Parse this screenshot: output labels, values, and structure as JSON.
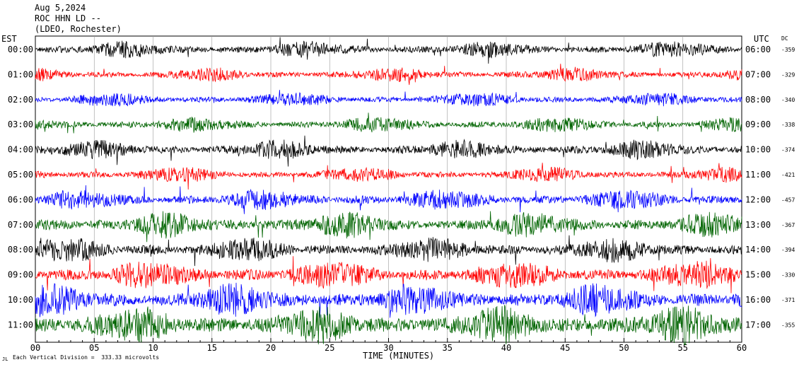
{
  "header": {
    "date": "Aug 5,2024",
    "station": "ROC HHN LD --",
    "network": "(LDEO, Rochester)"
  },
  "left_axis_title": "EST",
  "right_axis_title": "UTC",
  "dc_title": "DC",
  "footer": {
    "scale_text": "Each Vertical Division =  333.33 microvolts",
    "corner_mark": "JL"
  },
  "colors": {
    "black": "#000000",
    "red": "#ff0000",
    "blue": "#0000ff",
    "green": "#006400"
  },
  "chart_data": {
    "type": "line",
    "title": "ROC HHN LD --",
    "xlabel": "TIME (MINUTES)",
    "xlim": [
      0,
      60
    ],
    "x_ticks": [
      "00",
      "05",
      "10",
      "15",
      "20",
      "25",
      "30",
      "35",
      "40",
      "45",
      "50",
      "55",
      "60"
    ],
    "series": [
      {
        "est": "00:00",
        "utc": "06:00",
        "dc": "-359",
        "color": "black",
        "amplitude": 0.65
      },
      {
        "est": "01:00",
        "utc": "07:00",
        "dc": "-329",
        "color": "red",
        "amplitude": 0.55
      },
      {
        "est": "02:00",
        "utc": "08:00",
        "dc": "-340",
        "color": "blue",
        "amplitude": 0.55
      },
      {
        "est": "03:00",
        "utc": "09:00",
        "dc": "-338",
        "color": "green",
        "amplitude": 0.6
      },
      {
        "est": "04:00",
        "utc": "10:00",
        "dc": "-374",
        "color": "black",
        "amplitude": 0.75
      },
      {
        "est": "05:00",
        "utc": "11:00",
        "dc": "-421",
        "color": "red",
        "amplitude": 0.6
      },
      {
        "est": "06:00",
        "utc": "12:00",
        "dc": "-457",
        "color": "blue",
        "amplitude": 0.8
      },
      {
        "est": "07:00",
        "utc": "13:00",
        "dc": "-367",
        "color": "green",
        "amplitude": 1.0
      },
      {
        "est": "08:00",
        "utc": "14:00",
        "dc": "-394",
        "color": "black",
        "amplitude": 0.95
      },
      {
        "est": "09:00",
        "utc": "15:00",
        "dc": "-330",
        "color": "red",
        "amplitude": 1.1
      },
      {
        "est": "10:00",
        "utc": "16:00",
        "dc": "-371",
        "color": "blue",
        "amplitude": 1.25
      },
      {
        "est": "11:00",
        "utc": "17:00",
        "dc": "-355",
        "color": "green",
        "amplitude": 1.45
      }
    ]
  }
}
